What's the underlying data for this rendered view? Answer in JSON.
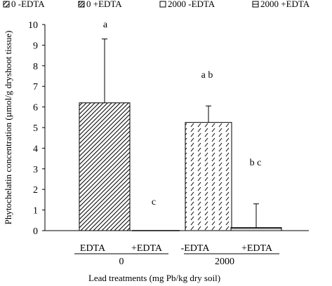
{
  "chart_data": {
    "type": "bar",
    "title": "",
    "ylabel": "Phytochelatin concentration (µmol/g dryshoot tissue)",
    "xlabel": "Lead treatments (mg Pb/kg dry soil)",
    "ylim": [
      0,
      10
    ],
    "yticks": [
      "0",
      "1",
      "2",
      "3",
      "4",
      "5",
      "6",
      "7",
      "8",
      "9",
      "10"
    ],
    "legend_position": "top",
    "grid": false,
    "legend": [
      {
        "label": "0  -EDTA",
        "pattern": "diag-right"
      },
      {
        "label": "0  +EDTA",
        "pattern": "diag-right-dense"
      },
      {
        "label": "2000  -EDTA",
        "pattern": "plain"
      },
      {
        "label": "2000  +EDTA",
        "pattern": "horizontal"
      }
    ],
    "categories": [
      "EDTA",
      "+EDTA",
      "-EDTA",
      "+EDTA"
    ],
    "groups": [
      {
        "label": "0",
        "categories": [
          0,
          1
        ]
      },
      {
        "label": "2000",
        "categories": [
          2,
          3
        ]
      }
    ],
    "series": [
      {
        "values": [
          6.2,
          0.0,
          5.25,
          0.15
        ],
        "error_upper": [
          9.3,
          null,
          6.05,
          1.3
        ]
      }
    ],
    "annotations": [
      "a",
      "c",
      "a b",
      "b c"
    ]
  }
}
